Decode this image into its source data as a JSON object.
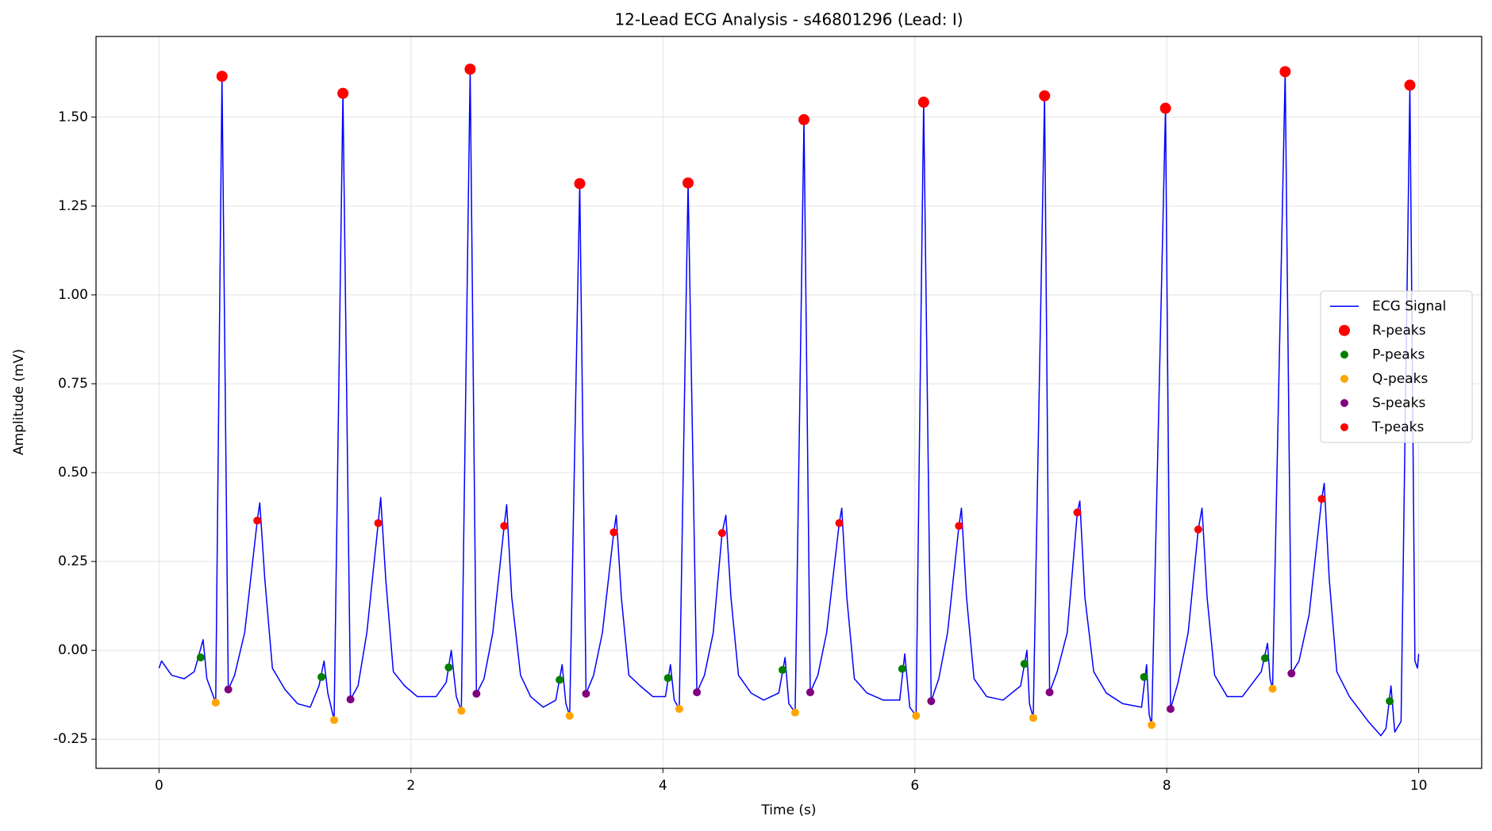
{
  "chart_data": {
    "type": "line",
    "title": "12-Lead ECG Analysis - s46801296 (Lead: I)",
    "xlabel": "Time (s)",
    "ylabel": "Amplitude (mV)",
    "xlim": [
      -0.5,
      10.5
    ],
    "ylim": [
      -0.332,
      1.727
    ],
    "xticks": [
      0,
      2,
      4,
      6,
      8,
      10
    ],
    "yticks": [
      -0.25,
      {
        "value": 0,
        "label": "0.00"
      },
      0.25,
      {
        "value": 0.5,
        "label": "0.50"
      },
      0.75,
      {
        "value": 1,
        "label": "1.00"
      },
      1.25,
      {
        "value": 1.5,
        "label": "1.50"
      }
    ],
    "grid": true,
    "legend_loc": "center right",
    "series": [
      {
        "name": "ECG Signal",
        "type": "line",
        "color": "#0000ff",
        "x": [
          0,
          0.02,
          0.1,
          0.2,
          0.28,
          0.35,
          0.38,
          0.45,
          0.5,
          0.55,
          0.6,
          0.68,
          0.78,
          0.8,
          0.84,
          0.9,
          1.0,
          1.1,
          1.2,
          1.27,
          1.31,
          1.34,
          1.39,
          1.46,
          1.52,
          1.58,
          1.65,
          1.74,
          1.76,
          1.8,
          1.86,
          1.95,
          2.05,
          2.2,
          2.28,
          2.32,
          2.36,
          2.4,
          2.47,
          2.52,
          2.58,
          2.65,
          2.74,
          2.76,
          2.8,
          2.87,
          2.95,
          3.05,
          3.15,
          3.2,
          3.23,
          3.26,
          3.34,
          3.39,
          3.45,
          3.52,
          3.61,
          3.63,
          3.67,
          3.73,
          3.82,
          3.92,
          4.02,
          4.06,
          4.09,
          4.13,
          4.2,
          4.27,
          4.33,
          4.4,
          4.47,
          4.5,
          4.54,
          4.6,
          4.7,
          4.8,
          4.92,
          4.97,
          5.0,
          5.05,
          5.12,
          5.17,
          5.23,
          5.3,
          5.4,
          5.42,
          5.46,
          5.52,
          5.62,
          5.75,
          5.88,
          5.92,
          5.96,
          6.01,
          6.07,
          6.13,
          6.19,
          6.26,
          6.35,
          6.37,
          6.41,
          6.47,
          6.57,
          6.7,
          6.84,
          6.89,
          6.91,
          6.94,
          7.03,
          7.07,
          7.13,
          7.21,
          7.29,
          7.31,
          7.35,
          7.42,
          7.52,
          7.65,
          7.8,
          7.84,
          7.86,
          7.88,
          7.99,
          8.03,
          8.09,
          8.17,
          8.25,
          8.28,
          8.32,
          8.38,
          8.48,
          8.6,
          8.75,
          8.8,
          8.82,
          8.84,
          8.94,
          8.99,
          9.05,
          9.13,
          9.23,
          9.25,
          9.29,
          9.35,
          9.45,
          9.6,
          9.7,
          9.74,
          9.78,
          9.81,
          9.86,
          9.93,
          9.97,
          9.99,
          10.0
        ],
        "values": [
          -0.05,
          -0.03,
          -0.07,
          -0.08,
          -0.06,
          0.03,
          -0.08,
          -0.147,
          1.615,
          -0.11,
          -0.07,
          0.05,
          0.365,
          0.415,
          0.2,
          -0.05,
          -0.11,
          -0.15,
          -0.16,
          -0.1,
          -0.03,
          -0.12,
          -0.196,
          1.567,
          -0.138,
          -0.1,
          0.05,
          0.358,
          0.43,
          0.2,
          -0.06,
          -0.1,
          -0.13,
          -0.13,
          -0.09,
          0.0,
          -0.13,
          -0.17,
          1.635,
          -0.122,
          -0.08,
          0.05,
          0.35,
          0.41,
          0.15,
          -0.07,
          -0.13,
          -0.16,
          -0.14,
          -0.04,
          -0.15,
          -0.184,
          1.313,
          -0.122,
          -0.07,
          0.05,
          0.332,
          0.38,
          0.15,
          -0.07,
          -0.1,
          -0.13,
          -0.13,
          -0.04,
          -0.14,
          -0.165,
          1.315,
          -0.118,
          -0.07,
          0.05,
          0.33,
          0.38,
          0.15,
          -0.07,
          -0.12,
          -0.14,
          -0.12,
          -0.02,
          -0.15,
          -0.175,
          1.493,
          -0.118,
          -0.07,
          0.05,
          0.358,
          0.4,
          0.15,
          -0.08,
          -0.12,
          -0.14,
          -0.14,
          -0.01,
          -0.16,
          -0.184,
          1.542,
          -0.143,
          -0.08,
          0.05,
          0.35,
          0.4,
          0.15,
          -0.08,
          -0.13,
          -0.14,
          -0.1,
          0.0,
          -0.15,
          -0.19,
          1.56,
          -0.118,
          -0.06,
          0.05,
          0.388,
          0.42,
          0.15,
          -0.06,
          -0.12,
          -0.15,
          -0.16,
          -0.04,
          -0.18,
          -0.21,
          1.525,
          -0.165,
          -0.09,
          0.05,
          0.34,
          0.4,
          0.15,
          -0.07,
          -0.13,
          -0.13,
          -0.06,
          0.02,
          -0.08,
          -0.108,
          1.628,
          -0.065,
          -0.03,
          0.1,
          0.426,
          0.47,
          0.2,
          -0.06,
          -0.13,
          -0.2,
          -0.24,
          -0.22,
          -0.1,
          -0.23,
          -0.2,
          1.59,
          -0.03,
          -0.05,
          -0.01
        ]
      },
      {
        "name": "R-peaks",
        "type": "scatter",
        "color": "#ff0000",
        "marker_size": 7,
        "x": [
          0.5,
          1.46,
          2.47,
          3.34,
          4.2,
          5.12,
          6.07,
          7.03,
          7.99,
          8.94,
          9.93
        ],
        "values": [
          1.615,
          1.567,
          1.635,
          1.313,
          1.315,
          1.493,
          1.542,
          1.56,
          1.525,
          1.628,
          1.59
        ]
      },
      {
        "name": "P-peaks",
        "type": "scatter",
        "color": "#008000",
        "marker_size": 5,
        "x": [
          0.33,
          1.29,
          2.3,
          3.18,
          4.04,
          4.95,
          5.9,
          6.87,
          7.82,
          8.78,
          9.77
        ],
        "values": [
          -0.02,
          -0.075,
          -0.048,
          -0.083,
          -0.078,
          -0.055,
          -0.052,
          -0.038,
          -0.075,
          -0.022,
          -0.143
        ]
      },
      {
        "name": "Q-peaks",
        "type": "scatter",
        "color": "#ffa500",
        "marker_size": 5,
        "x": [
          0.45,
          1.39,
          2.4,
          3.26,
          4.13,
          5.05,
          6.01,
          6.94,
          7.88,
          8.84
        ],
        "values": [
          -0.147,
          -0.196,
          -0.17,
          -0.184,
          -0.165,
          -0.175,
          -0.184,
          -0.19,
          -0.21,
          -0.108
        ]
      },
      {
        "name": "S-peaks",
        "type": "scatter",
        "color": "#800080",
        "marker_size": 5,
        "x": [
          0.55,
          1.52,
          2.52,
          3.39,
          4.27,
          5.17,
          6.13,
          7.07,
          8.03,
          8.99
        ],
        "values": [
          -0.11,
          -0.138,
          -0.122,
          -0.122,
          -0.118,
          -0.118,
          -0.143,
          -0.118,
          -0.165,
          -0.065
        ]
      },
      {
        "name": "T-peaks",
        "type": "scatter",
        "color": "#ff0000",
        "marker_size": 5,
        "x": [
          0.78,
          1.74,
          2.74,
          3.61,
          4.47,
          5.4,
          6.35,
          7.29,
          8.25,
          9.23
        ],
        "values": [
          0.365,
          0.358,
          0.35,
          0.332,
          0.33,
          0.358,
          0.35,
          0.388,
          0.34,
          0.426
        ]
      }
    ]
  }
}
